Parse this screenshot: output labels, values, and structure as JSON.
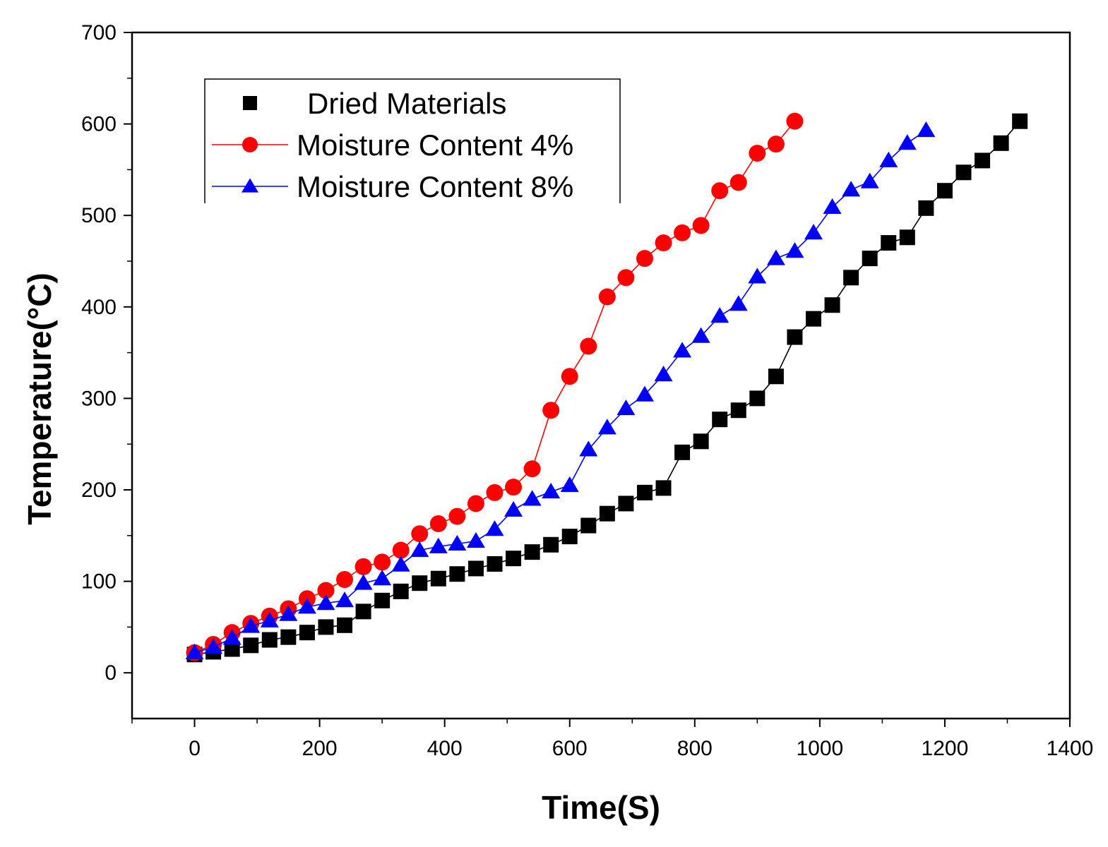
{
  "chart_data": {
    "type": "line",
    "xlabel": "Time(S)",
    "ylabel": "Temperature(°C)",
    "xlim": [
      -100,
      1400
    ],
    "ylim": [
      -50,
      700
    ],
    "xticks": [
      0,
      200,
      400,
      600,
      800,
      1000,
      1200,
      1400
    ],
    "yticks": [
      0,
      100,
      200,
      300,
      400,
      500,
      600,
      700
    ],
    "legend_position": "top-left",
    "grid": false,
    "series": [
      {
        "name": "Dried Materials",
        "color": "#000000",
        "marker": "square",
        "x": [
          0,
          30,
          60,
          90,
          120,
          150,
          180,
          210,
          240,
          270,
          300,
          330,
          360,
          390,
          420,
          450,
          480,
          510,
          540,
          570,
          600,
          630,
          660,
          690,
          720,
          750,
          780,
          810,
          840,
          870,
          900,
          930,
          960,
          990,
          1020,
          1050,
          1080,
          1110,
          1140,
          1170,
          1200,
          1230,
          1260,
          1290,
          1320
        ],
        "y": [
          20,
          23,
          26,
          30,
          36,
          39,
          44,
          50,
          52,
          67,
          79,
          89,
          98,
          103,
          108,
          114,
          119,
          125,
          132,
          140,
          149,
          161,
          174,
          185,
          197,
          202,
          241,
          253,
          277,
          287,
          300,
          324,
          367,
          387,
          402,
          432,
          453,
          470,
          476,
          508,
          527,
          547,
          560,
          579,
          603
        ]
      },
      {
        "name": "Moisture Content 4%",
        "color": "#ff0000",
        "marker": "circle",
        "x": [
          0,
          30,
          60,
          90,
          120,
          150,
          180,
          210,
          240,
          270,
          300,
          330,
          360,
          390,
          420,
          450,
          480,
          510,
          540,
          570,
          600,
          630,
          660,
          690,
          720,
          750,
          780,
          810,
          840,
          870,
          900,
          930,
          960
        ],
        "y": [
          22,
          31,
          44,
          54,
          62,
          70,
          81,
          90,
          102,
          116,
          121,
          134,
          152,
          163,
          171,
          185,
          197,
          203,
          223,
          287,
          324,
          357,
          411,
          432,
          453,
          470,
          481,
          489,
          527,
          536,
          568,
          578,
          603
        ]
      },
      {
        "name": "Moisture Content 8%",
        "color": "#0000ff",
        "marker": "triangle",
        "x": [
          0,
          30,
          60,
          90,
          120,
          150,
          180,
          210,
          240,
          270,
          300,
          330,
          360,
          390,
          420,
          450,
          480,
          510,
          540,
          570,
          600,
          630,
          660,
          690,
          720,
          750,
          780,
          810,
          840,
          870,
          900,
          930,
          960,
          990,
          1020,
          1050,
          1080,
          1110,
          1140,
          1170
        ],
        "y": [
          22,
          28,
          38,
          51,
          57,
          64,
          72,
          76,
          79,
          98,
          103,
          118,
          134,
          138,
          141,
          144,
          157,
          178,
          190,
          198,
          205,
          244,
          268,
          289,
          304,
          326,
          352,
          368,
          390,
          403,
          433,
          453,
          461,
          481,
          509,
          528,
          537,
          560,
          579,
          593
        ]
      }
    ]
  }
}
